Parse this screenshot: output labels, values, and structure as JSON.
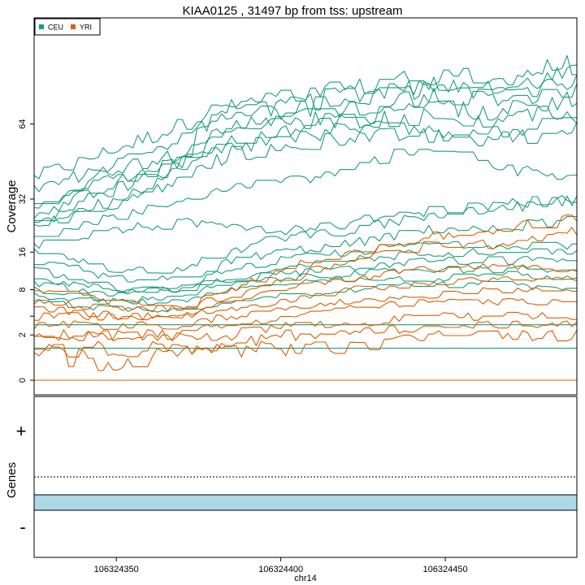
{
  "chart_data": {
    "type": "line",
    "title": "KIAA0125 , 31497 bp from tss: upstream",
    "xlabel": "chr14",
    "ylabel": "Coverage",
    "xlim": [
      106324325,
      106324490
    ],
    "x_ticks": [
      106324350,
      106324400,
      106324450
    ],
    "x_tick_labels": [
      "106324350",
      "106324400",
      "106324450"
    ],
    "y_scale": "sqrt",
    "ylim": [
      0,
      128
    ],
    "y_ticks": [
      0,
      2,
      4,
      8,
      16,
      32,
      64
    ],
    "y_tick_labels": [
      "0",
      "2",
      "",
      "8",
      "16",
      "32",
      "64"
    ],
    "legend": {
      "placement": "top-left",
      "entries": [
        {
          "label": "CEU",
          "color": "#1B9E77"
        },
        {
          "label": "YRI",
          "color": "#D95F02"
        }
      ]
    },
    "series_profiles": {
      "x_knots": [
        106324325,
        106324350,
        106324368,
        106324385,
        106324400,
        106324420,
        106324445,
        106324465,
        106324490
      ],
      "CEU": [
        [
          40,
          52,
          62,
          75,
          78,
          82,
          92,
          88,
          98
        ],
        [
          35,
          46,
          55,
          72,
          72,
          80,
          86,
          82,
          92
        ],
        [
          30,
          44,
          50,
          70,
          70,
          76,
          84,
          80,
          88
        ],
        [
          28,
          40,
          48,
          66,
          68,
          72,
          78,
          76,
          84
        ],
        [
          26,
          38,
          46,
          62,
          64,
          68,
          72,
          70,
          78
        ],
        [
          25,
          36,
          44,
          58,
          60,
          66,
          68,
          64,
          72
        ],
        [
          24,
          32,
          42,
          54,
          56,
          62,
          62,
          60,
          68
        ],
        [
          24,
          30,
          38,
          50,
          52,
          58,
          58,
          56,
          62
        ],
        [
          20,
          26,
          30,
          36,
          38,
          44,
          52,
          44,
          40
        ],
        [
          18,
          22,
          24,
          24,
          22,
          24,
          28,
          30,
          32
        ],
        [
          16,
          12,
          12,
          16,
          20,
          22,
          26,
          28,
          32
        ],
        [
          14,
          10,
          10,
          14,
          16,
          18,
          22,
          22,
          26
        ],
        [
          12,
          8,
          8,
          12,
          14,
          16,
          18,
          18,
          18
        ],
        [
          10,
          8,
          8,
          10,
          12,
          14,
          16,
          16,
          16
        ],
        [
          9,
          7,
          8,
          10,
          11,
          12,
          14,
          14,
          14
        ],
        [
          8,
          6,
          7,
          9,
          10,
          11,
          12,
          12,
          12
        ],
        [
          7,
          6,
          6,
          8,
          9,
          10,
          10,
          11,
          10
        ],
        [
          6,
          5,
          5,
          6,
          7,
          8,
          9,
          9,
          8
        ],
        [
          3,
          3,
          3,
          3,
          3,
          3,
          3,
          3,
          3
        ],
        [
          1,
          1,
          1,
          1,
          1,
          1,
          1,
          1,
          1
        ]
      ],
      "YRI": [
        [
          8,
          6,
          5,
          8,
          12,
          16,
          20,
          22,
          26
        ],
        [
          6,
          5,
          5,
          7,
          10,
          14,
          18,
          18,
          22
        ],
        [
          5,
          4,
          4,
          6,
          8,
          10,
          12,
          13,
          12
        ],
        [
          4,
          4,
          4,
          5,
          6,
          8,
          9,
          10,
          10
        ],
        [
          3,
          3,
          3,
          4,
          5,
          6,
          7,
          8,
          8
        ],
        [
          2,
          2,
          2,
          3,
          4,
          5,
          6,
          6,
          6
        ],
        [
          2,
          2,
          2,
          2,
          3,
          3,
          4,
          4,
          4
        ],
        [
          1,
          1,
          1,
          1,
          2,
          2,
          3,
          3,
          3
        ],
        [
          1,
          0,
          1,
          1,
          1,
          1,
          2,
          2,
          2
        ],
        [
          0,
          0,
          0,
          0,
          0,
          0,
          0,
          0,
          0
        ]
      ]
    },
    "genes_panel": {
      "ylabel": "Genes",
      "plus_strand_label": "+",
      "minus_strand_label": "-",
      "gene_color": "#ADD8E6",
      "gene_span": [
        106324325,
        106324490
      ],
      "gene_strand": "-"
    }
  }
}
